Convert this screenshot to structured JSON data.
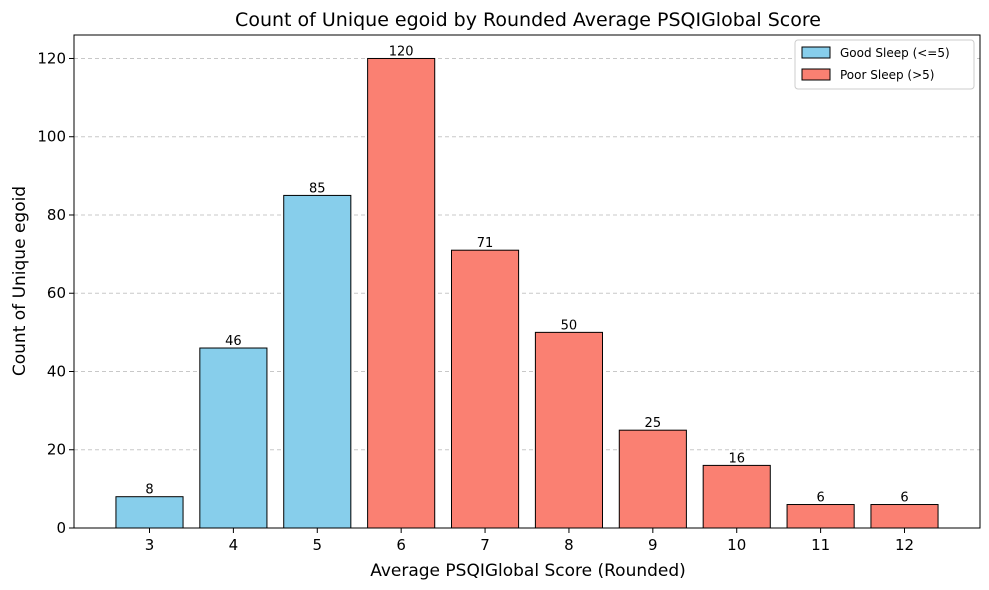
{
  "chart_data": {
    "type": "bar",
    "title": "Count of Unique egoid by Rounded Average PSQIGlobal Score",
    "xlabel": "Average PSQIGlobal Score (Rounded)",
    "ylabel": "Count of Unique egoid",
    "categories": [
      "3",
      "4",
      "5",
      "6",
      "7",
      "8",
      "9",
      "10",
      "11",
      "12"
    ],
    "values": [
      8,
      46,
      85,
      120,
      71,
      50,
      25,
      16,
      6,
      6
    ],
    "bar_groups": [
      "good",
      "good",
      "good",
      "poor",
      "poor",
      "poor",
      "poor",
      "poor",
      "poor",
      "poor"
    ],
    "ylim": [
      0,
      126
    ],
    "yticks": [
      0,
      20,
      40,
      60,
      80,
      100,
      120
    ],
    "grid": "horizontal dashed",
    "legend_position": "top-right",
    "legend": [
      {
        "key": "good",
        "label": "Good Sleep (<=5)",
        "color": "#87CEEB"
      },
      {
        "key": "poor",
        "label": "Poor Sleep (>5)",
        "color": "#FA8072"
      }
    ],
    "edge_color": "#000000"
  }
}
